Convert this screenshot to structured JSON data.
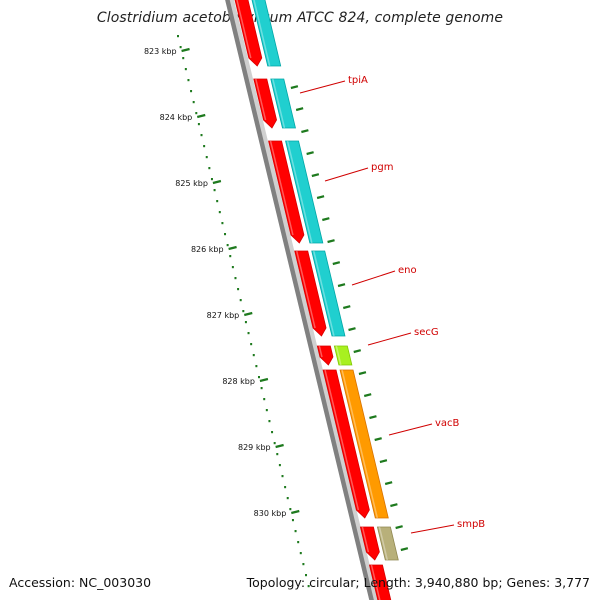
{
  "title": "Clostridium acetobutylicum ATCC 824, complete genome",
  "footer": {
    "accession": "Accession: NC_003030",
    "summary": "Topology: circular; Length: 3,940,880 bp; Genes: 3,777"
  },
  "map_data": {
    "scale_unit": "kbp",
    "scale_labels": [
      "823 kbp",
      "824 kbp",
      "825 kbp",
      "826 kbp",
      "827 kbp",
      "828 kbp",
      "829 kbp",
      "830 kbp"
    ],
    "gene_labels": [
      "tpiA",
      "pgm",
      "eno",
      "secG",
      "vacB",
      "smpB"
    ],
    "colors": {
      "backbone": "#808080",
      "ticks": "#1e7a1e",
      "gene_forward": "#ff0000",
      "cds_default": "#20cfcf",
      "secG": "#a8f020",
      "vacB": "#ff9a00",
      "smpB": "#b8b07a",
      "label_line": "#d00000"
    }
  }
}
